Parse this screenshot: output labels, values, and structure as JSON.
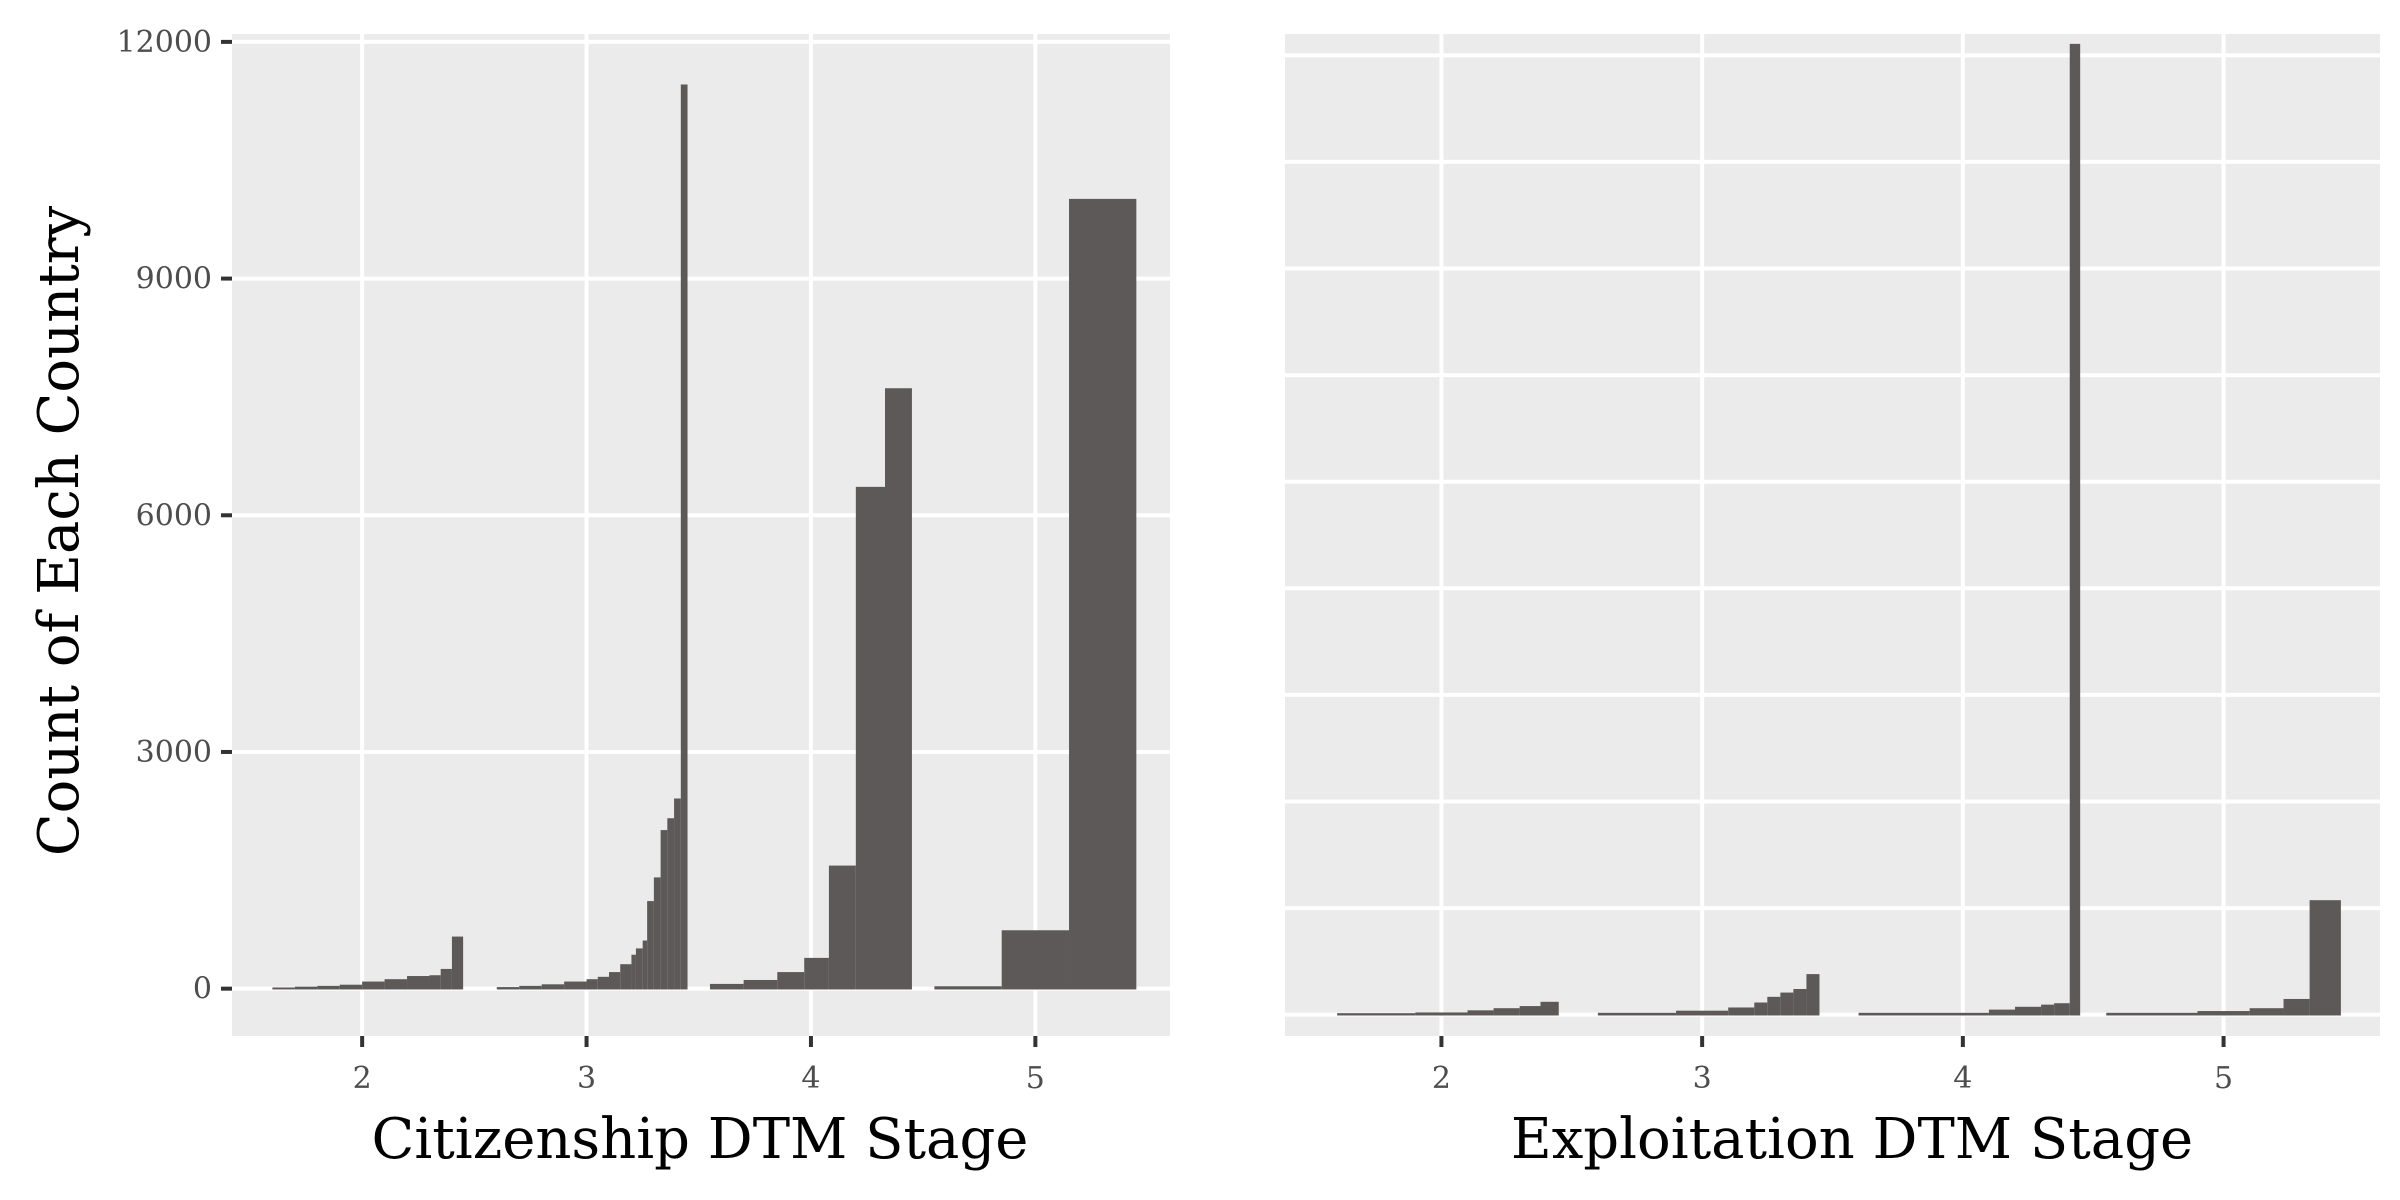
{
  "colors": {
    "panel_background": "#ebebeb",
    "grid_major": "#ffffff",
    "bar_fill": "#5d5958",
    "tick_mark": "#333333",
    "tick_label": "#4d4d4d"
  },
  "y_axis_title": "Count of Each Country",
  "chart_data": [
    {
      "type": "bar",
      "xlabel": "Citizenship DTM Stage",
      "ylabel": "Count of Each Country",
      "x_ticks": [
        2,
        3,
        4,
        5
      ],
      "x_tick_labels": [
        "2",
        "3",
        "4",
        "5"
      ],
      "y_ticks": [
        0,
        3000,
        6000,
        9000,
        12000
      ],
      "y_tick_labels": [
        "0",
        "3000",
        "6000",
        "9000",
        "12000"
      ],
      "xlim": [
        1.42,
        5.6
      ],
      "ylim": [
        -600,
        12100
      ],
      "grid": true,
      "bins": [
        {
          "x0": 1.6,
          "x1": 1.7,
          "count": 5
        },
        {
          "x0": 1.7,
          "x1": 1.8,
          "count": 15
        },
        {
          "x0": 1.8,
          "x1": 1.9,
          "count": 25
        },
        {
          "x0": 1.9,
          "x1": 2.0,
          "count": 40
        },
        {
          "x0": 2.0,
          "x1": 2.1,
          "count": 80
        },
        {
          "x0": 2.1,
          "x1": 2.2,
          "count": 110
        },
        {
          "x0": 2.2,
          "x1": 2.3,
          "count": 150
        },
        {
          "x0": 2.3,
          "x1": 2.35,
          "count": 160
        },
        {
          "x0": 2.35,
          "x1": 2.4,
          "count": 240
        },
        {
          "x0": 2.4,
          "x1": 2.45,
          "count": 650
        },
        {
          "x0": 2.6,
          "x1": 2.7,
          "count": 10
        },
        {
          "x0": 2.7,
          "x1": 2.8,
          "count": 25
        },
        {
          "x0": 2.8,
          "x1": 2.9,
          "count": 45
        },
        {
          "x0": 2.9,
          "x1": 3.0,
          "count": 80
        },
        {
          "x0": 3.0,
          "x1": 3.05,
          "count": 110
        },
        {
          "x0": 3.05,
          "x1": 3.1,
          "count": 140
        },
        {
          "x0": 3.1,
          "x1": 3.15,
          "count": 200
        },
        {
          "x0": 3.15,
          "x1": 3.2,
          "count": 300
        },
        {
          "x0": 3.2,
          "x1": 3.22,
          "count": 420
        },
        {
          "x0": 3.22,
          "x1": 3.25,
          "count": 500
        },
        {
          "x0": 3.25,
          "x1": 3.27,
          "count": 600
        },
        {
          "x0": 3.27,
          "x1": 3.3,
          "count": 1100
        },
        {
          "x0": 3.3,
          "x1": 3.33,
          "count": 1400
        },
        {
          "x0": 3.33,
          "x1": 3.36,
          "count": 2000
        },
        {
          "x0": 3.36,
          "x1": 3.39,
          "count": 2150
        },
        {
          "x0": 3.39,
          "x1": 3.42,
          "count": 2400
        },
        {
          "x0": 3.42,
          "x1": 3.45,
          "count": 11450
        },
        {
          "x0": 3.55,
          "x1": 3.7,
          "count": 50
        },
        {
          "x0": 3.7,
          "x1": 3.85,
          "count": 100
        },
        {
          "x0": 3.85,
          "x1": 3.97,
          "count": 200
        },
        {
          "x0": 3.97,
          "x1": 4.08,
          "count": 380
        },
        {
          "x0": 4.08,
          "x1": 4.2,
          "count": 1550
        },
        {
          "x0": 4.2,
          "x1": 4.33,
          "count": 6350
        },
        {
          "x0": 4.33,
          "x1": 4.45,
          "count": 7600
        },
        {
          "x0": 4.55,
          "x1": 4.85,
          "count": 20
        },
        {
          "x0": 4.85,
          "x1": 5.15,
          "count": 730
        },
        {
          "x0": 5.15,
          "x1": 5.45,
          "count": 10000
        }
      ]
    },
    {
      "type": "bar",
      "xlabel": "Exploitation DTM Stage",
      "ylabel": "",
      "x_ticks": [
        2,
        3,
        4,
        5
      ],
      "x_tick_labels": [
        "2",
        "3",
        "4",
        "5"
      ],
      "y_ticks": [
        0,
        1500,
        3000,
        4500,
        6000,
        7500,
        9000,
        10500,
        12000,
        13500
      ],
      "y_tick_labels": [],
      "xlim": [
        1.4,
        5.6
      ],
      "ylim": [
        -300,
        13800
      ],
      "grid": true,
      "bins": [
        {
          "x0": 1.6,
          "x1": 1.9,
          "count": 10
        },
        {
          "x0": 1.9,
          "x1": 2.1,
          "count": 20
        },
        {
          "x0": 2.1,
          "x1": 2.2,
          "count": 50
        },
        {
          "x0": 2.2,
          "x1": 2.3,
          "count": 80
        },
        {
          "x0": 2.3,
          "x1": 2.38,
          "count": 110
        },
        {
          "x0": 2.38,
          "x1": 2.45,
          "count": 170
        },
        {
          "x0": 2.6,
          "x1": 2.9,
          "count": 15
        },
        {
          "x0": 2.9,
          "x1": 3.1,
          "count": 45
        },
        {
          "x0": 3.1,
          "x1": 3.2,
          "count": 90
        },
        {
          "x0": 3.2,
          "x1": 3.25,
          "count": 160
        },
        {
          "x0": 3.25,
          "x1": 3.3,
          "count": 240
        },
        {
          "x0": 3.3,
          "x1": 3.35,
          "count": 300
        },
        {
          "x0": 3.35,
          "x1": 3.4,
          "count": 350
        },
        {
          "x0": 3.4,
          "x1": 3.45,
          "count": 560
        },
        {
          "x0": 3.6,
          "x1": 4.1,
          "count": 15
        },
        {
          "x0": 4.1,
          "x1": 4.2,
          "count": 60
        },
        {
          "x0": 4.2,
          "x1": 4.3,
          "count": 100
        },
        {
          "x0": 4.3,
          "x1": 4.35,
          "count": 130
        },
        {
          "x0": 4.35,
          "x1": 4.41,
          "count": 150
        },
        {
          "x0": 4.41,
          "x1": 4.45,
          "count": 13650
        },
        {
          "x0": 4.55,
          "x1": 4.9,
          "count": 15
        },
        {
          "x0": 4.9,
          "x1": 5.1,
          "count": 40
        },
        {
          "x0": 5.1,
          "x1": 5.23,
          "count": 80
        },
        {
          "x0": 5.23,
          "x1": 5.33,
          "count": 210
        },
        {
          "x0": 5.33,
          "x1": 5.45,
          "count": 1600
        }
      ]
    }
  ]
}
